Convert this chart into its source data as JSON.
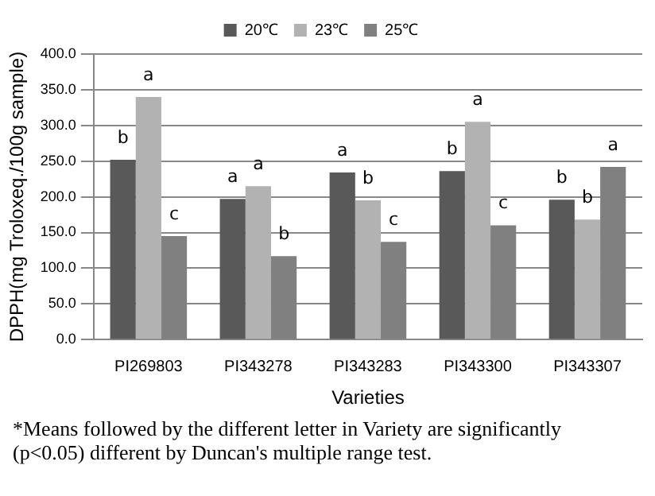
{
  "chart_data": {
    "type": "bar",
    "xlabel": "Varieties",
    "ylabel": "DPPH(mg Troloxeq./100g sample)",
    "categories": [
      "PI269803",
      "PI343278",
      "PI343283",
      "PI343300",
      "PI343307"
    ],
    "series": [
      {
        "name": "20℃",
        "color": "#595959",
        "values": [
          252,
          197,
          234,
          236,
          196
        ],
        "value_labels": [
          "b",
          "a",
          "a",
          "b",
          "b"
        ]
      },
      {
        "name": "23℃",
        "color": "#b2b2b2",
        "values": [
          340,
          215,
          195,
          305,
          168
        ],
        "value_labels": [
          "a",
          "a",
          "b",
          "a",
          "b"
        ]
      },
      {
        "name": "25℃",
        "color": "#808080",
        "values": [
          145,
          117,
          137,
          160,
          242
        ],
        "value_labels": [
          "c",
          "b",
          "c",
          "c",
          "a"
        ]
      }
    ],
    "ylim": [
      0,
      400
    ],
    "yticks": [
      {
        "value": 0,
        "label": "0.0"
      },
      {
        "value": 50,
        "label": "50.0"
      },
      {
        "value": 100,
        "label": "100.0"
      },
      {
        "value": 150,
        "label": "150.0"
      },
      {
        "value": 200,
        "label": "200.0"
      },
      {
        "value": 250,
        "label": "250.0"
      },
      {
        "value": 300,
        "label": "300.0"
      },
      {
        "value": 350,
        "label": "350.0"
      },
      {
        "value": 400,
        "label": "400.0"
      }
    ],
    "grid": "y",
    "legend": "top",
    "annotations": [
      "*Means followed by the different letter in Variety are significantly (p<0.05) different by Duncan's multiple range test."
    ]
  }
}
